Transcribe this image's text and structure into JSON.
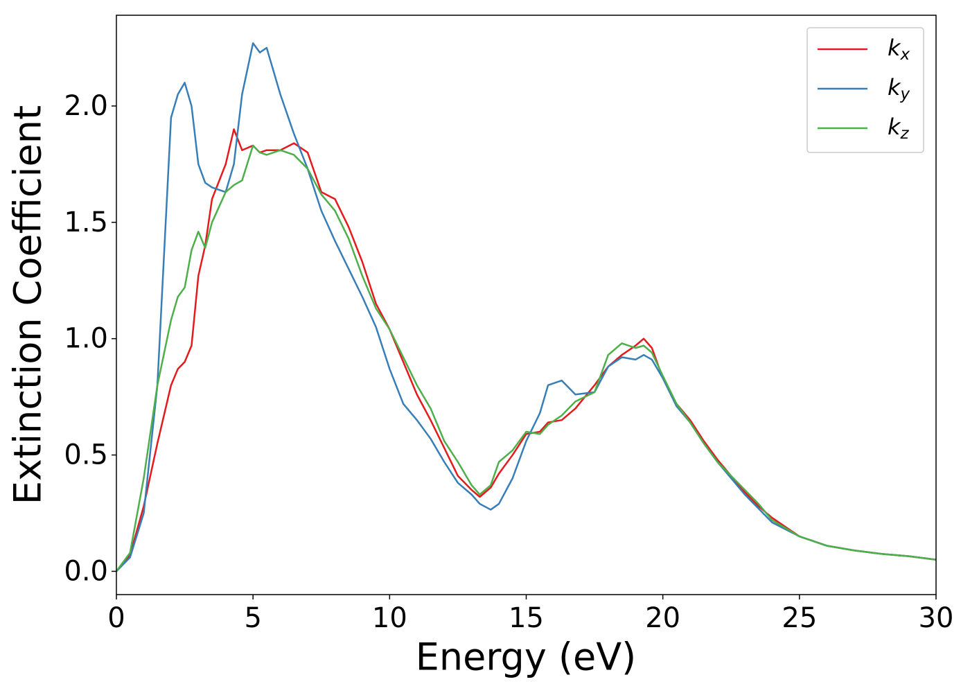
{
  "chart_data": {
    "type": "line",
    "xlabel": "Energy (eV)",
    "ylabel": "Extinction Coefficient",
    "xlim": [
      0,
      30
    ],
    "ylim": [
      -0.1,
      2.39
    ],
    "xticks": [
      0,
      5,
      10,
      15,
      20,
      25,
      30
    ],
    "yticks": [
      {
        "value": 0,
        "label": "0.0"
      },
      0.5,
      {
        "value": 1,
        "label": "1.0"
      },
      1.5,
      {
        "value": 2,
        "label": "2.0"
      }
    ],
    "legend": "upper right",
    "x": [
      0,
      0.5,
      1,
      1.5,
      2,
      2.25,
      2.5,
      2.75,
      3,
      3.25,
      3.5,
      4,
      4.3,
      4.6,
      5,
      5.25,
      5.5,
      6,
      6.5,
      7,
      7.5,
      8,
      8.5,
      9,
      9.5,
      10,
      10.5,
      11,
      11.5,
      12,
      12.5,
      13,
      13.3,
      13.7,
      14,
      14.5,
      15,
      15.5,
      15.8,
      16.3,
      16.8,
      17.5,
      18,
      18.5,
      19,
      19.3,
      19.6,
      20,
      20.5,
      21,
      21.5,
      22,
      22.5,
      23,
      23.5,
      24,
      25,
      26,
      27,
      28,
      29,
      30
    ],
    "series": [
      {
        "name": "kx",
        "color": "#e41a1c",
        "values": [
          0,
          0.07,
          0.28,
          0.55,
          0.8,
          0.87,
          0.9,
          0.97,
          1.27,
          1.4,
          1.6,
          1.75,
          1.9,
          1.81,
          1.83,
          1.8,
          1.81,
          1.81,
          1.84,
          1.8,
          1.63,
          1.6,
          1.48,
          1.33,
          1.15,
          1.04,
          0.9,
          0.76,
          0.65,
          0.53,
          0.41,
          0.35,
          0.32,
          0.36,
          0.42,
          0.5,
          0.59,
          0.6,
          0.64,
          0.65,
          0.7,
          0.8,
          0.88,
          0.93,
          0.97,
          1.0,
          0.96,
          0.83,
          0.72,
          0.65,
          0.56,
          0.48,
          0.41,
          0.34,
          0.28,
          0.23,
          0.15,
          0.11,
          0.09,
          0.075,
          0.065,
          0.05
        ]
      },
      {
        "name": "ky",
        "color": "#377eb8",
        "values": [
          0,
          0.06,
          0.25,
          0.8,
          1.95,
          2.05,
          2.1,
          2.0,
          1.75,
          1.67,
          1.65,
          1.63,
          1.75,
          2.05,
          2.27,
          2.23,
          2.25,
          2.05,
          1.88,
          1.73,
          1.55,
          1.42,
          1.3,
          1.18,
          1.05,
          0.87,
          0.72,
          0.65,
          0.57,
          0.47,
          0.38,
          0.33,
          0.29,
          0.265,
          0.29,
          0.4,
          0.56,
          0.68,
          0.8,
          0.82,
          0.76,
          0.77,
          0.88,
          0.92,
          0.91,
          0.93,
          0.91,
          0.83,
          0.71,
          0.64,
          0.55,
          0.47,
          0.4,
          0.33,
          0.27,
          0.21,
          0.15,
          0.11,
          0.09,
          0.075,
          0.065,
          0.05
        ]
      },
      {
        "name": "kz",
        "color": "#4daf4a",
        "values": [
          0,
          0.08,
          0.4,
          0.8,
          1.08,
          1.18,
          1.22,
          1.38,
          1.46,
          1.39,
          1.5,
          1.63,
          1.66,
          1.68,
          1.83,
          1.8,
          1.79,
          1.81,
          1.79,
          1.73,
          1.62,
          1.55,
          1.43,
          1.27,
          1.13,
          1.04,
          0.92,
          0.8,
          0.7,
          0.56,
          0.47,
          0.37,
          0.33,
          0.37,
          0.47,
          0.52,
          0.6,
          0.59,
          0.63,
          0.67,
          0.73,
          0.77,
          0.93,
          0.98,
          0.96,
          0.97,
          0.94,
          0.84,
          0.72,
          0.64,
          0.55,
          0.47,
          0.41,
          0.35,
          0.29,
          0.22,
          0.15,
          0.11,
          0.09,
          0.075,
          0.065,
          0.05
        ]
      }
    ]
  }
}
